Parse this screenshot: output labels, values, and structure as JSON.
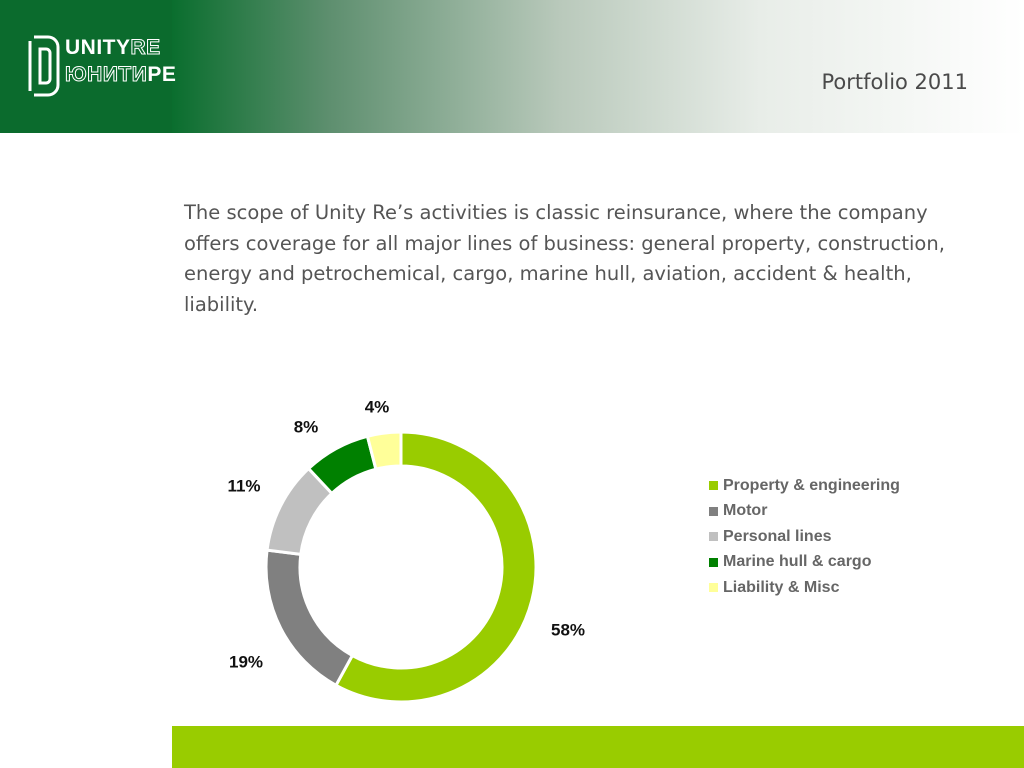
{
  "header": {
    "logo_line1_a": "UNITY",
    "logo_line1_b": "RE",
    "logo_line2_a": "ЮНИТИ",
    "logo_line2_b": "РЕ",
    "page_title": "Portfolio 2011",
    "brand_color": "#0b6b2d"
  },
  "intro_text": "The scope of Unity Re’s activities is classic reinsurance, where the company offers coverage for all major lines of business: general property, construction, energy and petrochemical, cargo, marine hull, aviation, accident & health, liability.",
  "chart_data": {
    "type": "pie",
    "style": "donut",
    "title": "",
    "legend_position": "right",
    "categories": [
      "Property & engineering",
      "Motor",
      "Personal lines",
      "Marine hull & cargo",
      "Liability & Misc"
    ],
    "values": [
      58,
      19,
      11,
      8,
      4
    ],
    "labels": [
      "58%",
      "19%",
      "11%",
      "8%",
      "4%"
    ],
    "unit": "%",
    "colors": [
      "#99cc00",
      "#808080",
      "#c0c0c0",
      "#008000",
      "#ffff99"
    ]
  },
  "footer": {
    "accent_color": "#99cc00"
  }
}
